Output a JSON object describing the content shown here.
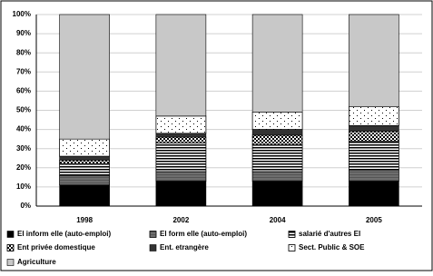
{
  "chart_data": {
    "type": "stacked_bar",
    "categories": [
      "1998",
      "2002",
      "2004",
      "2005"
    ],
    "series": [
      {
        "name": "El inform elle (auto-emploi)",
        "color": "#000000",
        "values": [
          11,
          13,
          13,
          13
        ]
      },
      {
        "name": "El form elle (auto-emploi)",
        "color": "#6e6e6e",
        "values": [
          5,
          5,
          5,
          6
        ]
      },
      {
        "name": "salarié d'autres EI",
        "color": "#ffffff",
        "values": [
          6,
          15,
          14,
          15
        ]
      },
      {
        "name": "Ent privée domestique",
        "color": "#ffffff",
        "values": [
          2,
          3,
          5,
          5
        ]
      },
      {
        "name": "Ent. etrangère",
        "color": "#333333",
        "values": [
          2,
          2,
          3,
          3
        ]
      },
      {
        "name": "Sect. Public & SOE",
        "color": "#ffffff",
        "values": [
          9,
          9,
          9,
          10
        ]
      },
      {
        "name": "Agriculture",
        "color": "#c8c8c8",
        "values": [
          65,
          53,
          51,
          48
        ]
      }
    ],
    "ylim": [
      0,
      100
    ],
    "yticks": [
      {
        "value": 0,
        "label": "0%"
      },
      {
        "value": 10,
        "label": "10%"
      },
      {
        "value": 20,
        "label": "20%"
      },
      {
        "value": 30,
        "label": "30%"
      },
      {
        "value": 40,
        "label": "40%"
      },
      {
        "value": 50,
        "label": "50%"
      },
      {
        "value": 60,
        "label": "60%"
      },
      {
        "value": 70,
        "label": "70%"
      },
      {
        "value": 80,
        "label": "80%"
      },
      {
        "value": 90,
        "label": "90%"
      },
      {
        "value": 100,
        "label": "100%"
      }
    ],
    "grid": true
  }
}
